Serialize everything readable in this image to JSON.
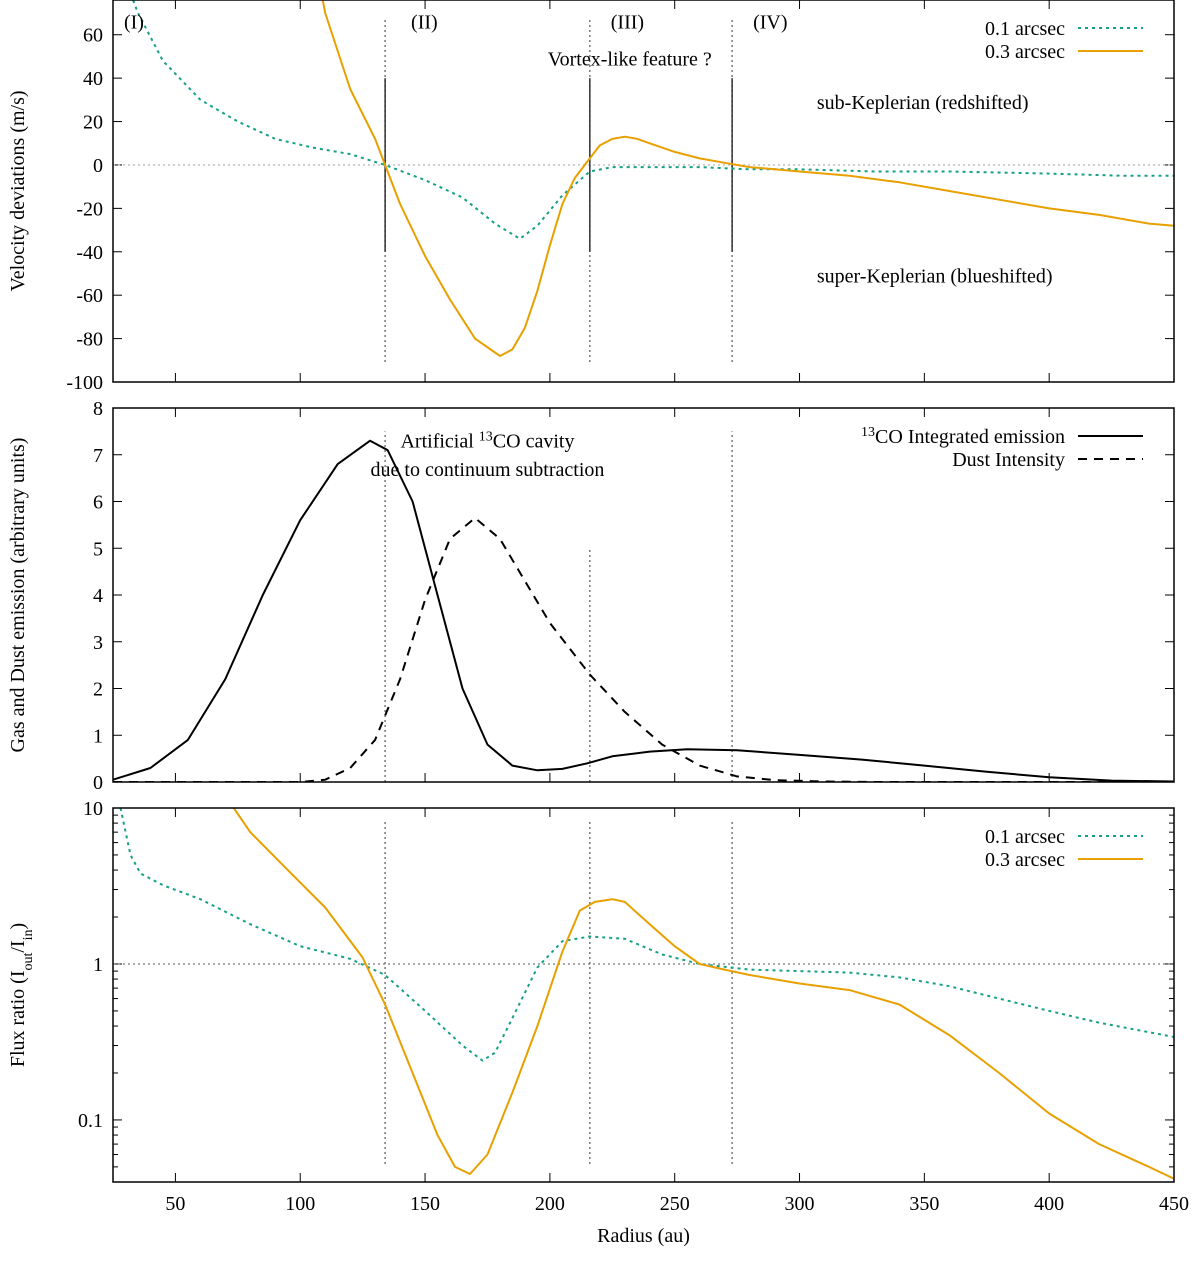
{
  "colors": {
    "green": "#16a085",
    "orange": "#e8a000",
    "black": "#000000",
    "grid": "#999999"
  },
  "chart_data": [
    {
      "type": "line",
      "id": "velocity",
      "ylabel": "Velocity deviations (m/s)",
      "xlim": [
        25,
        450
      ],
      "ylim": [
        -100,
        76
      ],
      "yticks": [
        -100,
        -80,
        -60,
        -40,
        -20,
        0,
        20,
        40,
        60
      ],
      "xticks": [
        50,
        100,
        150,
        200,
        250,
        300,
        350,
        400,
        450
      ],
      "hline": 0,
      "region_lines": [
        134,
        216,
        273
      ],
      "solid_marks": [
        [
          134,
          -40,
          40
        ],
        [
          216,
          -40,
          40
        ],
        [
          273,
          -40,
          40
        ]
      ],
      "region_labels": [
        {
          "text": "(I)",
          "x": 35,
          "y": 66
        },
        {
          "text": "(II)",
          "x": 150,
          "y": 66
        },
        {
          "text": "(III)",
          "x": 230,
          "y": 66
        },
        {
          "text": "(IV)",
          "x": 287,
          "y": 66
        }
      ],
      "annotations": [
        {
          "text": "Vortex-like feature ?",
          "x": 232,
          "y": 49
        },
        {
          "text": "sub-Keplerian (redshifted)",
          "x": 335,
          "y": 29
        },
        {
          "text": "super-Keplerian (blueshifted)",
          "x": 335,
          "y": -51
        }
      ],
      "legend": [
        "0.1 arcsec",
        "0.3 arcsec"
      ],
      "series": [
        {
          "name": "0.1 arcsec",
          "style": "dotted-green",
          "x": [
            25,
            35,
            45,
            60,
            75,
            90,
            105,
            120,
            134,
            150,
            165,
            178,
            188,
            195,
            205,
            216,
            225,
            240,
            260,
            280,
            300,
            330,
            360,
            400,
            430,
            450
          ],
          "y": [
            100,
            70,
            48,
            30,
            20,
            12,
            8,
            5,
            0,
            -7,
            -15,
            -27,
            -34,
            -28,
            -14,
            -3,
            -1,
            -1,
            -1,
            -2,
            -2,
            -3,
            -3,
            -4,
            -5,
            -5
          ]
        },
        {
          "name": "0.3 arcsec",
          "style": "solid-orange",
          "x": [
            100,
            110,
            120,
            130,
            134,
            140,
            150,
            160,
            170,
            180,
            185,
            190,
            195,
            200,
            205,
            210,
            216,
            220,
            225,
            230,
            235,
            240,
            250,
            260,
            270,
            280,
            290,
            300,
            320,
            340,
            360,
            380,
            400,
            420,
            440,
            450
          ],
          "y": [
            130,
            70,
            35,
            12,
            0,
            -18,
            -42,
            -62,
            -80,
            -88,
            -85,
            -75,
            -58,
            -37,
            -18,
            -6,
            3,
            9,
            12,
            13,
            12,
            10,
            6,
            3,
            1,
            -1,
            -2,
            -3,
            -5,
            -8,
            -12,
            -16,
            -20,
            -23,
            -27,
            -28
          ]
        }
      ]
    },
    {
      "type": "line",
      "id": "emission",
      "ylabel": "Gas and Dust emission (arbitrary units)",
      "xlim": [
        25,
        450
      ],
      "ylim": [
        0,
        8
      ],
      "yticks": [
        0,
        1,
        2,
        3,
        4,
        5,
        6,
        7,
        8
      ],
      "xticks": [
        50,
        100,
        150,
        200,
        250,
        300,
        350,
        400,
        450
      ],
      "region_lines": [
        [
          134,
          0,
          7.5
        ],
        [
          216,
          0,
          5
        ],
        [
          273,
          0,
          7.5
        ]
      ],
      "annotations": [
        {
          "text": "Artificial ¹³CO cavity",
          "x": 175,
          "y": 7.3
        },
        {
          "text": "due to continuum subtraction",
          "x": 175,
          "y": 6.7
        }
      ],
      "legend": [
        "¹³CO Integrated emission",
        "Dust Intensity"
      ],
      "series": [
        {
          "name": "13CO Integrated emission",
          "style": "solid-black",
          "x": [
            25,
            40,
            55,
            70,
            85,
            100,
            115,
            128,
            135,
            145,
            155,
            165,
            175,
            185,
            195,
            205,
            215,
            225,
            240,
            255,
            275,
            300,
            325,
            350,
            375,
            400,
            425,
            450
          ],
          "y": [
            0.05,
            0.3,
            0.9,
            2.2,
            4.0,
            5.6,
            6.8,
            7.3,
            7.1,
            6.0,
            4.0,
            2.0,
            0.8,
            0.35,
            0.25,
            0.28,
            0.4,
            0.55,
            0.65,
            0.7,
            0.68,
            0.58,
            0.48,
            0.35,
            0.22,
            0.1,
            0.03,
            0.01
          ]
        },
        {
          "name": "Dust Intensity",
          "style": "dashed-black",
          "x": [
            25,
            100,
            110,
            120,
            130,
            140,
            150,
            160,
            170,
            180,
            190,
            200,
            216,
            230,
            245,
            260,
            275,
            290,
            310,
            330,
            450
          ],
          "y": [
            0,
            0,
            0.05,
            0.3,
            0.9,
            2.2,
            3.9,
            5.2,
            5.65,
            5.2,
            4.3,
            3.4,
            2.3,
            1.5,
            0.8,
            0.35,
            0.12,
            0.04,
            0.01,
            0,
            0
          ]
        }
      ]
    },
    {
      "type": "line",
      "id": "fluxratio",
      "ylabel": "Flux ratio (Iout/Iin)",
      "yscale": "log",
      "xlabel": "Radius (au)",
      "xlim": [
        25,
        450
      ],
      "ylim": [
        0.04,
        10
      ],
      "yticks": [
        0.1,
        1,
        10
      ],
      "ytick_labels": [
        "0.1",
        "1",
        "10"
      ],
      "xticks": [
        50,
        100,
        150,
        200,
        250,
        300,
        350,
        400,
        450
      ],
      "hline": 1,
      "region_lines": [
        134,
        216,
        273
      ],
      "legend": [
        "0.1 arcsec",
        "0.3 arcsec"
      ],
      "series": [
        {
          "name": "0.1 arcsec",
          "style": "dotted-green",
          "x": [
            28,
            32,
            36,
            45,
            60,
            80,
            100,
            120,
            134,
            150,
            165,
            173,
            178,
            185,
            195,
            205,
            216,
            230,
            245,
            260,
            280,
            300,
            320,
            340,
            360,
            380,
            400,
            420,
            450
          ],
          "y": [
            10,
            5,
            3.8,
            3.2,
            2.6,
            1.8,
            1.3,
            1.08,
            0.85,
            0.5,
            0.3,
            0.24,
            0.27,
            0.45,
            0.95,
            1.4,
            1.5,
            1.45,
            1.15,
            1.0,
            0.92,
            0.9,
            0.88,
            0.82,
            0.72,
            0.6,
            0.5,
            0.42,
            0.34
          ]
        },
        {
          "name": "0.3 arcsec",
          "style": "solid-orange",
          "x": [
            70,
            80,
            95,
            110,
            125,
            134,
            145,
            155,
            162,
            168,
            175,
            185,
            195,
            205,
            212,
            218,
            225,
            230,
            240,
            250,
            260,
            270,
            280,
            300,
            320,
            340,
            360,
            380,
            400,
            420,
            440,
            450
          ],
          "y": [
            12,
            7,
            4,
            2.3,
            1.1,
            0.55,
            0.2,
            0.08,
            0.05,
            0.045,
            0.06,
            0.15,
            0.4,
            1.2,
            2.2,
            2.5,
            2.6,
            2.5,
            1.8,
            1.3,
            1.0,
            0.92,
            0.85,
            0.75,
            0.68,
            0.55,
            0.35,
            0.2,
            0.11,
            0.07,
            0.05,
            0.042
          ]
        }
      ]
    }
  ]
}
